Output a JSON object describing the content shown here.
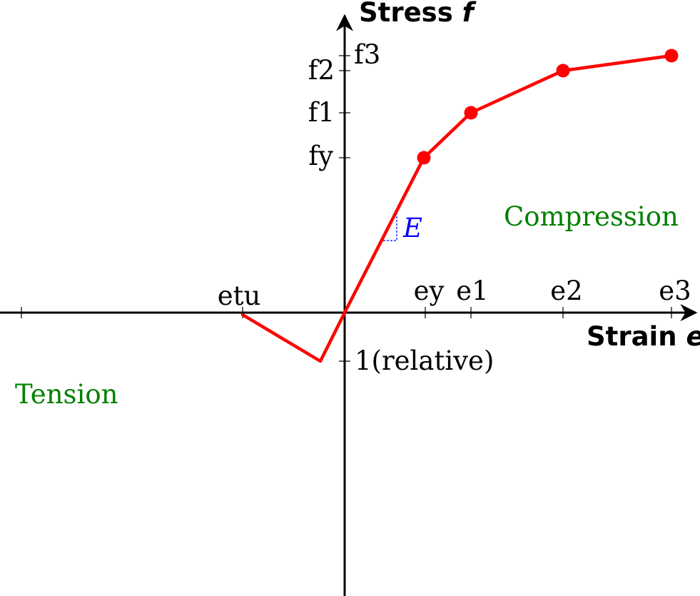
{
  "y_axis": {
    "title_text": "Stress ",
    "title_symbol": "f"
  },
  "x_axis": {
    "title_text": "Strain ",
    "title_symbol": "e"
  },
  "stress_ticks": [
    "f3",
    "f2",
    "f1",
    "fy"
  ],
  "strain_ticks": [
    "etu",
    "ey",
    "e1",
    "e2",
    "e3"
  ],
  "negative_stress_label": "1(relative)",
  "modulus_label": "E",
  "regions": {
    "compression": "Compression",
    "tension": "Tension"
  },
  "colors": {
    "curve": "#ff0000",
    "regions": "#008000",
    "modulus": "#0000ff",
    "axes": "#000000"
  }
}
